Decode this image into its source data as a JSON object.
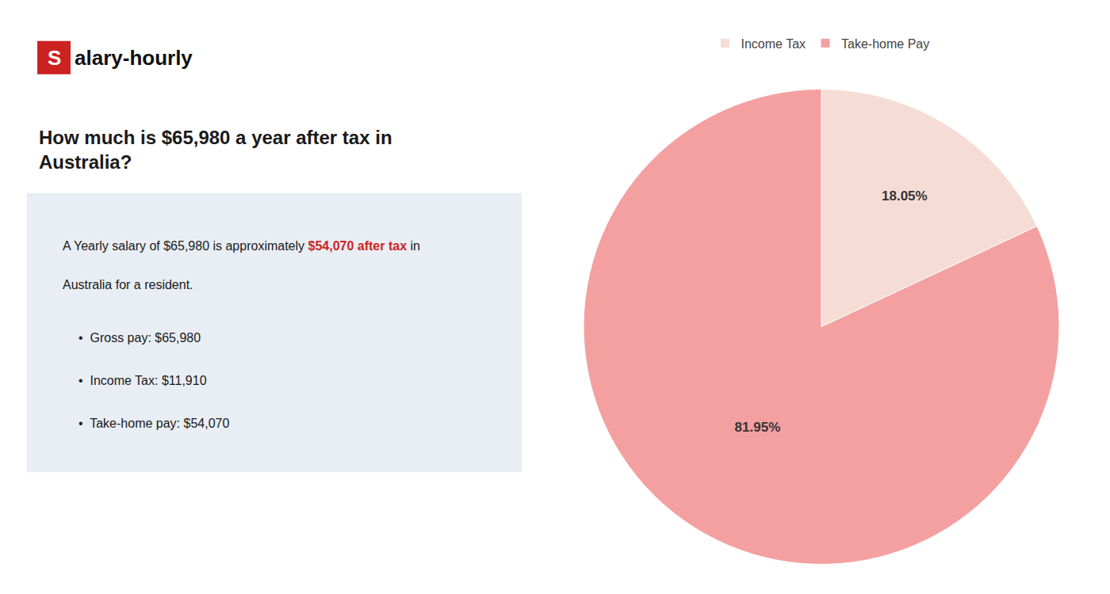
{
  "chart_data": {
    "type": "pie",
    "title": "How much is $65,980 a year after tax in\nAustralia?",
    "categories": [
      "Income Tax",
      "Take-home Pay"
    ],
    "values": [
      18.05,
      81.95
    ],
    "value_labels": [
      "18.05%",
      "81.95%"
    ],
    "colors": [
      "#f5ddd5",
      "#f4a0a0"
    ],
    "data_labels": true,
    "legend": "top",
    "annotations": [
      {
        "text": "S",
        "color": "#ffffff",
        "background": "#cc2222"
      },
      {
        "text": "alary-hourly"
      },
      {
        "text": "A Yearly salary of $65,980 is approximately "
      },
      {
        "text": "$54,070 after tax",
        "color": "#cc2222"
      },
      {
        "text": " in"
      },
      {
        "text": "Australia for a resident."
      },
      {
        "text": "•  Gross pay: $65,980"
      },
      {
        "text": "•  Income Tax: $11,910"
      },
      {
        "text": "•  Take-home pay: $54,070"
      }
    ]
  }
}
